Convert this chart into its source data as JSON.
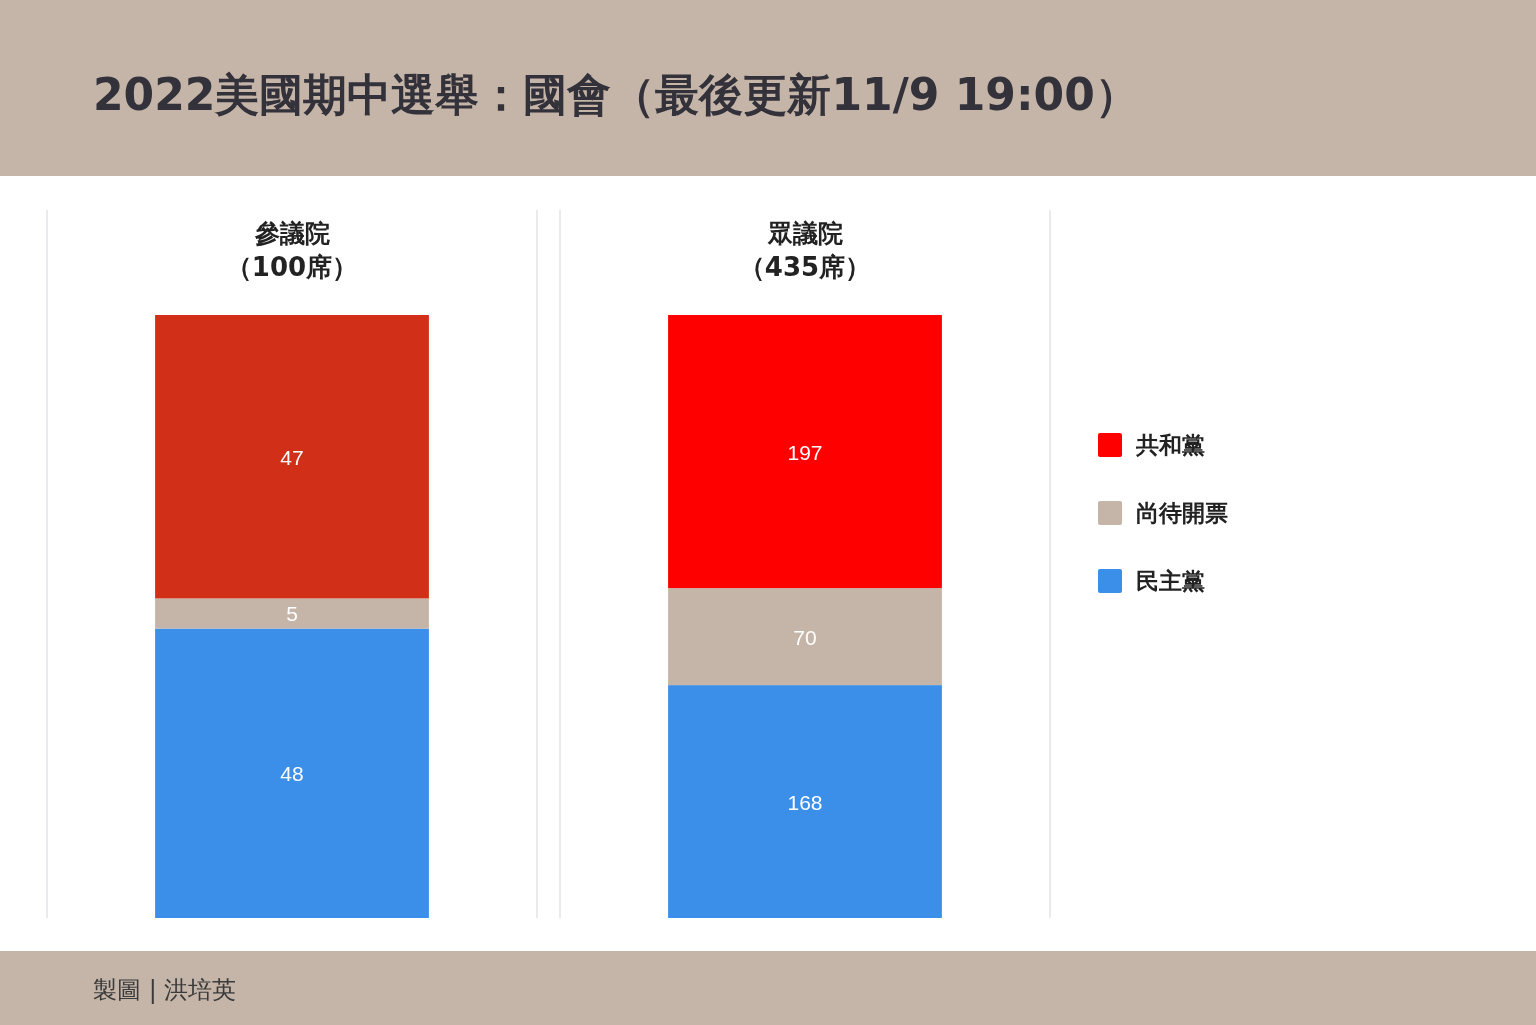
{
  "chart_data": [
    {
      "type": "other",
      "title": "2022美國期中選舉：國會（最後更新11/9 19:00）",
      "annotations": [
        "製圖 | 洪培英"
      ]
    },
    {
      "type": "bar",
      "title": "參議院",
      "subtitle": "（100席）",
      "categories": [
        null
      ],
      "stacked": true,
      "data_labels": true,
      "series": [
        {
          "color": "#3c8fe8",
          "values": [
            48
          ]
        },
        {
          "color": "#c5b5a8",
          "values": [
            5
          ]
        },
        {
          "color": "#d12f17",
          "values": [
            47
          ]
        }
      ]
    },
    {
      "type": "bar",
      "title": "眾議院",
      "subtitle": "（435席）",
      "categories": [
        null
      ],
      "stacked": true,
      "data_labels": true,
      "legend": "right",
      "series": [
        {
          "name": "民主黨",
          "color": "#3c8fe8",
          "values": [
            168
          ]
        },
        {
          "name": "尚待開票",
          "color": "#c5b5a8",
          "values": [
            70
          ]
        },
        {
          "name": "共和黨",
          "color": "#ff0000",
          "values": [
            197
          ]
        }
      ]
    }
  ]
}
